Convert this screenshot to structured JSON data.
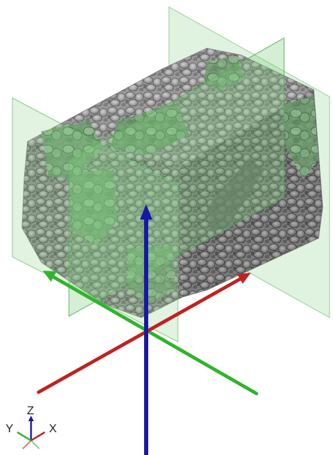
{
  "scene": {
    "background": "#ffffff",
    "object": "porous-foam-sample",
    "object_color": "#8f8f8f",
    "section_plane_color": "#7ecf7e",
    "axis_colors": {
      "x": "#c0221f",
      "y": "#2fb52c",
      "z": "#1717a8"
    }
  },
  "triad": {
    "z_label": "Z",
    "y_label": "Y",
    "x_label": "X",
    "icon": "orientation-triad-icon"
  }
}
